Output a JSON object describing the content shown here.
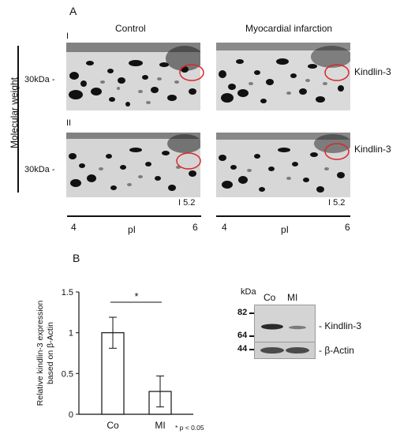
{
  "panel_a": {
    "letter": "A",
    "col_control": "Control",
    "col_mi": "Myocardial infarction",
    "y_axis": "Molecular weight",
    "row1": "I",
    "row2": "II",
    "mw_row1": "30kDa -",
    "mw_row2": "30kDa -",
    "protein_row1": "Kindlin-3",
    "protein_row2": "Kindlin-3",
    "pi_marker_left": "I 5.2",
    "pi_marker_right": "I 5.2",
    "left_axis": {
      "min": "4",
      "label": "pI",
      "max": "6"
    },
    "right_axis": {
      "min": "4",
      "label": "pI",
      "max": "6"
    },
    "highlight_color": "#d9262c"
  },
  "panel_b": {
    "letter": "B",
    "blot": {
      "unit": "kDa",
      "lanes": [
        "Co",
        "MI"
      ],
      "markers": [
        "82",
        "64",
        "44"
      ],
      "band1": "- Kindlin-3",
      "band2": "- β-Actin"
    }
  },
  "chart_data": {
    "type": "bar",
    "categories": [
      "Co",
      "MI"
    ],
    "values": [
      1.0,
      0.28
    ],
    "errors": [
      0.19,
      0.19
    ],
    "ylabel_line1": "Relative kindlin-3 expression",
    "ylabel_line2": "based on β-Actin",
    "yticks": [
      "0",
      "0.5",
      "1",
      "1.5"
    ],
    "ylim": [
      0,
      1.5
    ],
    "significance": "*",
    "footnote": "* p < 0.05"
  }
}
